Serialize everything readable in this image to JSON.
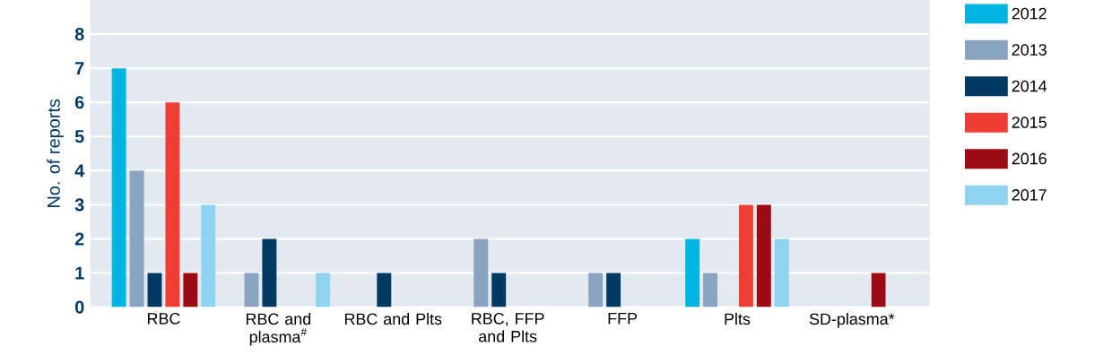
{
  "chart_data": {
    "type": "bar",
    "ylabel": "No. of reports",
    "categories": [
      "RBC",
      "RBC and plasma$^{#}$",
      "RBC and Plts",
      "RBC, FFP and Plts",
      "FFP",
      "Plts",
      "SD-plasma*"
    ],
    "series": [
      {
        "name": "2012",
        "color": "#00b5e2",
        "values": [
          7,
          0,
          0,
          0,
          0,
          2,
          0
        ]
      },
      {
        "name": "2013",
        "color": "#8aa3c1",
        "values": [
          4,
          1,
          0,
          2,
          1,
          1,
          0
        ]
      },
      {
        "name": "2014",
        "color": "#003a63",
        "values": [
          1,
          2,
          1,
          1,
          1,
          0,
          0
        ]
      },
      {
        "name": "2015",
        "color": "#ef3e33",
        "values": [
          6,
          0,
          0,
          0,
          0,
          3,
          0
        ]
      },
      {
        "name": "2016",
        "color": "#9c0a13",
        "values": [
          1,
          0,
          0,
          0,
          0,
          3,
          1
        ]
      },
      {
        "name": "2017",
        "color": "#8fd3f0",
        "values": [
          3,
          1,
          0,
          0,
          0,
          2,
          0
        ]
      }
    ],
    "ylim": [
      0,
      9
    ],
    "yticks": [
      0,
      1,
      2,
      3,
      4,
      5,
      6,
      7,
      8
    ],
    "grid": "y",
    "legend": "right"
  }
}
